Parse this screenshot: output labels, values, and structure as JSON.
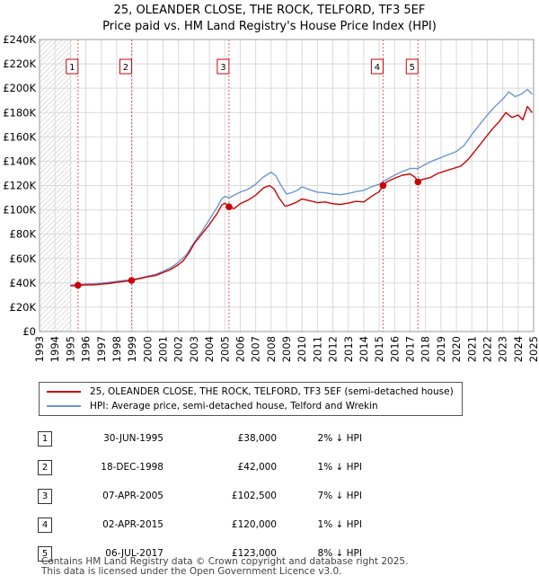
{
  "title_line1": "25, OLEANDER CLOSE, THE ROCK, TELFORD, TF3 5EF",
  "title_line2": "Price paid vs. HM Land Registry's House Price Index (HPI)",
  "chart_data": {
    "type": "line",
    "title": "25, OLEANDER CLOSE, THE ROCK, TELFORD, TF3 5EF - Price paid vs. HM Land Registry's House Price Index (HPI)",
    "xlabel": "",
    "ylabel": "",
    "xlim": [
      1993,
      2025
    ],
    "ylim": [
      0,
      240000
    ],
    "x_ticks": [
      "1993",
      "1994",
      "1995",
      "1996",
      "1997",
      "1998",
      "1999",
      "2000",
      "2001",
      "2002",
      "2003",
      "2004",
      "2005",
      "2006",
      "2007",
      "2008",
      "2009",
      "2010",
      "2011",
      "2012",
      "2013",
      "2014",
      "2015",
      "2016",
      "2017",
      "2018",
      "2019",
      "2020",
      "2021",
      "2022",
      "2023",
      "2024",
      "2025"
    ],
    "y_ticks": [
      {
        "value": 0,
        "label": "£0"
      },
      {
        "value": 20000,
        "label": "£20K"
      },
      {
        "value": 40000,
        "label": "£40K"
      },
      {
        "value": 60000,
        "label": "£60K"
      },
      {
        "value": 80000,
        "label": "£80K"
      },
      {
        "value": 100000,
        "label": "£100K"
      },
      {
        "value": 120000,
        "label": "£120K"
      },
      {
        "value": 140000,
        "label": "£140K"
      },
      {
        "value": 160000,
        "label": "£160K"
      },
      {
        "value": 180000,
        "label": "£180K"
      },
      {
        "value": 200000,
        "label": "£200K"
      },
      {
        "value": 220000,
        "label": "£220K"
      },
      {
        "value": 240000,
        "label": "£240K"
      }
    ],
    "grid": true,
    "hatched_range": [
      1993,
      1995.1
    ],
    "series": [
      {
        "name": "25, OLEANDER CLOSE, THE ROCK, TELFORD, TF3 5EF (semi-detached house)",
        "color": "#cc0000",
        "points": [
          [
            1995.0,
            37500
          ],
          [
            1995.5,
            38000
          ],
          [
            1996.0,
            38500
          ],
          [
            1996.5,
            38300
          ],
          [
            1997.0,
            39000
          ],
          [
            1997.5,
            39500
          ],
          [
            1998.0,
            40500
          ],
          [
            1998.5,
            41200
          ],
          [
            1998.96,
            42000
          ],
          [
            1999.5,
            43500
          ],
          [
            2000.0,
            45000
          ],
          [
            2000.5,
            46000
          ],
          [
            2001.0,
            48500
          ],
          [
            2001.5,
            51000
          ],
          [
            2002.0,
            55000
          ],
          [
            2002.3,
            58000
          ],
          [
            2002.7,
            65000
          ],
          [
            2003.0,
            72000
          ],
          [
            2003.5,
            80000
          ],
          [
            2004.0,
            88000
          ],
          [
            2004.5,
            97000
          ],
          [
            2004.8,
            104000
          ],
          [
            2005.0,
            105500
          ],
          [
            2005.27,
            102500
          ],
          [
            2005.6,
            101000
          ],
          [
            2006.0,
            105000
          ],
          [
            2006.5,
            108000
          ],
          [
            2007.0,
            112000
          ],
          [
            2007.5,
            118000
          ],
          [
            2007.9,
            120000
          ],
          [
            2008.2,
            117000
          ],
          [
            2008.5,
            110000
          ],
          [
            2008.9,
            103000
          ],
          [
            2009.2,
            104000
          ],
          [
            2009.6,
            106000
          ],
          [
            2010.0,
            109000
          ],
          [
            2010.5,
            107500
          ],
          [
            2011.0,
            106000
          ],
          [
            2011.5,
            106500
          ],
          [
            2012.0,
            105000
          ],
          [
            2012.5,
            104500
          ],
          [
            2013.0,
            105500
          ],
          [
            2013.5,
            107000
          ],
          [
            2014.0,
            106500
          ],
          [
            2014.5,
            111000
          ],
          [
            2015.0,
            115000
          ],
          [
            2015.25,
            120000
          ],
          [
            2015.5,
            123000
          ],
          [
            2016.0,
            126000
          ],
          [
            2016.5,
            128500
          ],
          [
            2017.0,
            129500
          ],
          [
            2017.3,
            127000
          ],
          [
            2017.51,
            123000
          ],
          [
            2017.8,
            125000
          ],
          [
            2018.3,
            126500
          ],
          [
            2018.8,
            130000
          ],
          [
            2019.3,
            132000
          ],
          [
            2019.8,
            134000
          ],
          [
            2020.3,
            136000
          ],
          [
            2020.8,
            142000
          ],
          [
            2021.3,
            150000
          ],
          [
            2021.8,
            158000
          ],
          [
            2022.3,
            166000
          ],
          [
            2022.8,
            173000
          ],
          [
            2023.2,
            180000
          ],
          [
            2023.6,
            176000
          ],
          [
            2024.0,
            178000
          ],
          [
            2024.3,
            174000
          ],
          [
            2024.6,
            185000
          ],
          [
            2024.9,
            180000
          ]
        ]
      },
      {
        "name": "HPI: Average price, semi-detached house, Telford and Wrekin",
        "color": "#6b96d0",
        "points": [
          [
            1995.0,
            38000
          ],
          [
            1995.5,
            38600
          ],
          [
            1996.0,
            39000
          ],
          [
            1996.5,
            39300
          ],
          [
            1997.0,
            39800
          ],
          [
            1997.5,
            40500
          ],
          [
            1998.0,
            41200
          ],
          [
            1998.5,
            42000
          ],
          [
            1999.0,
            42600
          ],
          [
            1999.5,
            44000
          ],
          [
            2000.0,
            45500
          ],
          [
            2000.5,
            47000
          ],
          [
            2001.0,
            49500
          ],
          [
            2001.5,
            52500
          ],
          [
            2002.0,
            57000
          ],
          [
            2002.5,
            63000
          ],
          [
            2003.0,
            73000
          ],
          [
            2003.5,
            82000
          ],
          [
            2004.0,
            92000
          ],
          [
            2004.5,
            102000
          ],
          [
            2004.8,
            109000
          ],
          [
            2005.0,
            111000
          ],
          [
            2005.3,
            110000
          ],
          [
            2005.6,
            112000
          ],
          [
            2006.0,
            114500
          ],
          [
            2006.5,
            117000
          ],
          [
            2007.0,
            121000
          ],
          [
            2007.5,
            127000
          ],
          [
            2008.0,
            131000
          ],
          [
            2008.3,
            128000
          ],
          [
            2008.6,
            121000
          ],
          [
            2009.0,
            113000
          ],
          [
            2009.3,
            114000
          ],
          [
            2009.7,
            116000
          ],
          [
            2010.0,
            119000
          ],
          [
            2010.5,
            116500
          ],
          [
            2011.0,
            114500
          ],
          [
            2011.5,
            114000
          ],
          [
            2012.0,
            113000
          ],
          [
            2012.5,
            112500
          ],
          [
            2013.0,
            113500
          ],
          [
            2013.5,
            115000
          ],
          [
            2014.0,
            116000
          ],
          [
            2014.5,
            119000
          ],
          [
            2015.0,
            121000
          ],
          [
            2015.5,
            125000
          ],
          [
            2016.0,
            128500
          ],
          [
            2016.5,
            131500
          ],
          [
            2017.0,
            134000
          ],
          [
            2017.5,
            134000
          ],
          [
            2018.0,
            137500
          ],
          [
            2018.5,
            140500
          ],
          [
            2019.0,
            143000
          ],
          [
            2019.5,
            145500
          ],
          [
            2020.0,
            148000
          ],
          [
            2020.5,
            153000
          ],
          [
            2021.0,
            162000
          ],
          [
            2021.5,
            170000
          ],
          [
            2022.0,
            178000
          ],
          [
            2022.5,
            185000
          ],
          [
            2023.0,
            191000
          ],
          [
            2023.4,
            197000
          ],
          [
            2023.8,
            193000
          ],
          [
            2024.2,
            195000
          ],
          [
            2024.6,
            199000
          ],
          [
            2024.9,
            195000
          ]
        ]
      }
    ],
    "sales": [
      {
        "id": "1",
        "x": 1995.49,
        "price": 38000
      },
      {
        "id": "2",
        "x": 1998.96,
        "price": 42000
      },
      {
        "id": "3",
        "x": 2005.27,
        "price": 102500
      },
      {
        "id": "4",
        "x": 2015.25,
        "price": 120000
      },
      {
        "id": "5",
        "x": 2017.51,
        "price": 123000
      }
    ]
  },
  "legend": {
    "property_label": "25, OLEANDER CLOSE, THE ROCK, TELFORD, TF3 5EF (semi-detached house)",
    "hpi_label": "HPI: Average price, semi-detached house, Telford and Wrekin"
  },
  "colors": {
    "property": "#cc0000",
    "hpi": "#6b96d0",
    "grid": "#d9d9d9"
  },
  "sales_table": [
    {
      "num": "1",
      "date": "30-JUN-1995",
      "price": "£38,000",
      "hpi": "2% ↓ HPI"
    },
    {
      "num": "2",
      "date": "18-DEC-1998",
      "price": "£42,000",
      "hpi": "1% ↓ HPI"
    },
    {
      "num": "3",
      "date": "07-APR-2005",
      "price": "£102,500",
      "hpi": "7% ↓ HPI"
    },
    {
      "num": "4",
      "date": "02-APR-2015",
      "price": "£120,000",
      "hpi": "1% ↓ HPI"
    },
    {
      "num": "5",
      "date": "06-JUL-2017",
      "price": "£123,000",
      "hpi": "8% ↓ HPI"
    }
  ],
  "footer": {
    "line1": "Contains HM Land Registry data © Crown copyright and database right 2025.",
    "line2": "This data is licensed under the Open Government Licence v3.0."
  }
}
